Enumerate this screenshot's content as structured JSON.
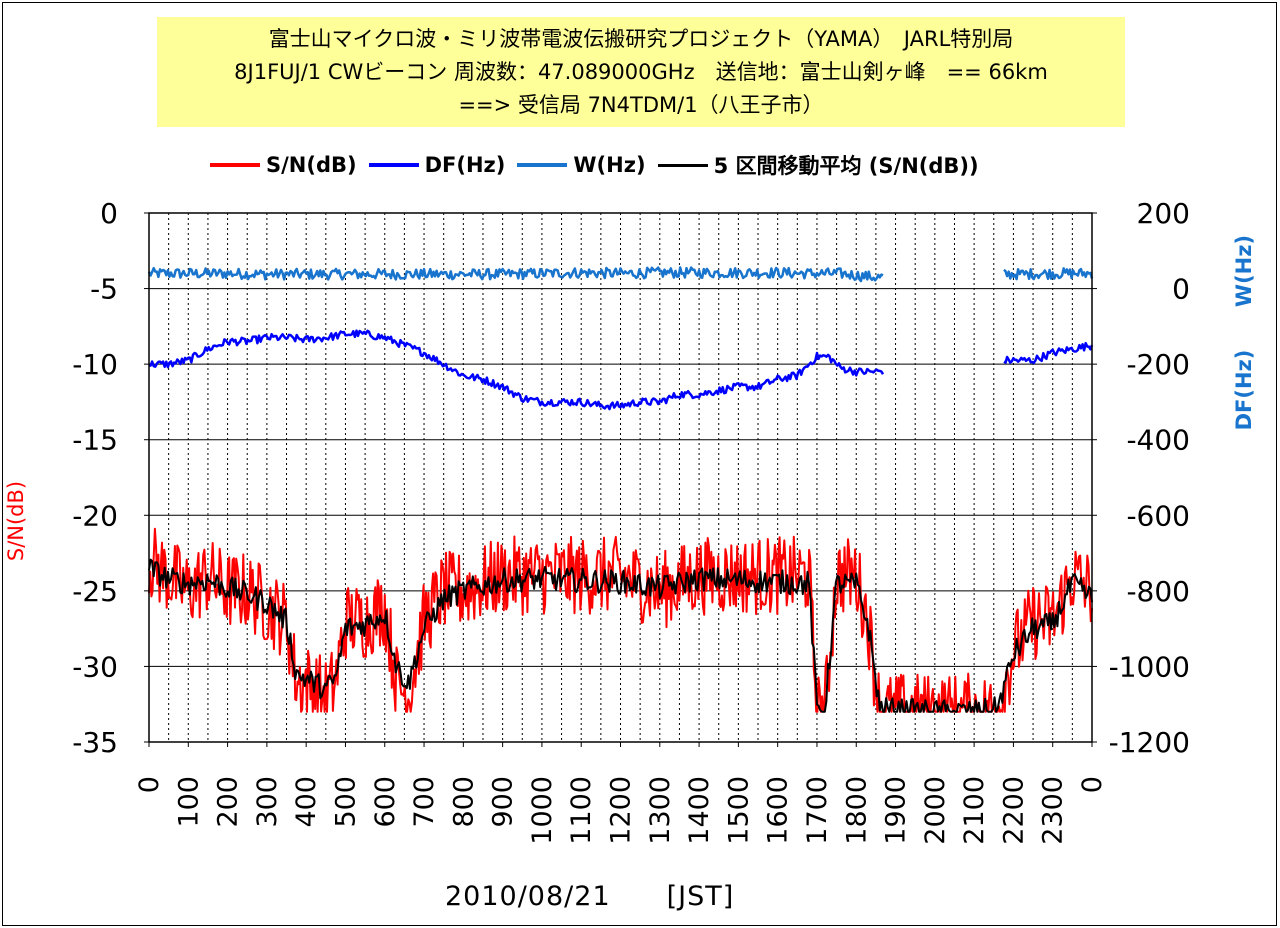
{
  "chart_data": {
    "type": "line",
    "title_lines": [
      "富士山マイクロ波・ミリ波帯電波伝搬研究プロジェクト（YAMA）　JARL特別局",
      "8J1FUJ/1 CWビーコン 周波数：47.089000GHz　送信地：富士山剣ヶ峰　== 66km",
      "==> 受信局 7N4TDM/1（八王子市）"
    ],
    "xlabel": "2010/08/21　　[JST]",
    "ylabel_left": "S/N(dB)",
    "ylabel_right_w": "W(Hz)",
    "ylabel_right_df": "DF(Hz)",
    "x_tick_labels": [
      "0",
      "100",
      "200",
      "300",
      "400",
      "500",
      "600",
      "700",
      "800",
      "900",
      "1000",
      "1100",
      "1200",
      "1300",
      "1400",
      "1500",
      "1600",
      "1700",
      "1800",
      "1900",
      "2000",
      "2100",
      "2200",
      "2300",
      "0"
    ],
    "x_range_hours": [
      0,
      24
    ],
    "y_left_ticks": [
      "0",
      "-5",
      "-10",
      "-15",
      "-20",
      "-25",
      "-30",
      "-35"
    ],
    "y_left_range": [
      -35,
      0
    ],
    "y_right_ticks": [
      "200",
      "0",
      "-200",
      "-400",
      "-600",
      "-800",
      "-1000",
      "-1200"
    ],
    "y_right_range": [
      -1200,
      200
    ],
    "grid": true,
    "legend_position": "top",
    "series": [
      {
        "name": "S/N(dB)",
        "axis": "left",
        "color": "#ff0000",
        "x_hours": [
          0,
          0.5,
          1,
          1.5,
          2,
          2.5,
          3,
          3.5,
          3.75,
          4,
          4.5,
          4.75,
          5,
          5.5,
          6,
          6.3,
          6.6,
          7,
          7.5,
          8,
          9,
          10,
          11,
          12,
          13,
          14,
          15,
          16,
          16.8,
          17,
          17.2,
          17.5,
          18,
          18.3,
          18.6,
          19,
          20,
          21,
          21.6,
          22,
          22.5,
          23,
          23.5,
          24
        ],
        "values": [
          -23,
          -24,
          -25,
          -24,
          -25,
          -25,
          -26,
          -27,
          -31,
          -31,
          -32,
          -31,
          -27,
          -27,
          -26,
          -31,
          -32,
          -27,
          -25,
          -25,
          -24,
          -24,
          -24,
          -24,
          -25,
          -24,
          -24,
          -24,
          -24,
          -33,
          -33,
          -24,
          -24,
          -27,
          -33,
          -33,
          -33,
          -33,
          -33,
          -29,
          -27,
          -27,
          -24,
          -25
        ]
      },
      {
        "name": "5 区間移動平均 (S/N(dB))",
        "axis": "left",
        "color": "#000000",
        "x_hours": [
          0,
          0.5,
          1,
          1.5,
          2,
          2.5,
          3,
          3.5,
          3.75,
          4,
          4.5,
          4.75,
          5,
          5.5,
          6,
          6.3,
          6.6,
          7,
          7.5,
          8,
          9,
          10,
          11,
          12,
          13,
          14,
          15,
          16,
          16.8,
          17,
          17.2,
          17.5,
          18,
          18.3,
          18.6,
          19,
          20,
          21,
          21.6,
          22,
          22.5,
          23,
          23.5,
          24
        ],
        "values": [
          -23.5,
          -24.2,
          -24.5,
          -24.3,
          -24.8,
          -25.2,
          -25.8,
          -27,
          -30.5,
          -30.8,
          -31.5,
          -30.8,
          -27.5,
          -27.2,
          -26.5,
          -30,
          -31.2,
          -27.5,
          -25.5,
          -25,
          -24.3,
          -24.2,
          -24.3,
          -24.4,
          -24.8,
          -24.2,
          -24.3,
          -24.4,
          -24.5,
          -32.8,
          -32.8,
          -24.5,
          -24.6,
          -27.2,
          -32.8,
          -32.9,
          -33,
          -33,
          -32.8,
          -29.2,
          -27.5,
          -27.2,
          -24.5,
          -25.5
        ]
      },
      {
        "name": "DF(Hz)",
        "axis": "right",
        "color": "#0000ff",
        "x_hours": [
          0,
          0.5,
          1,
          1.5,
          2,
          2.5,
          3,
          3.5,
          4,
          4.5,
          5,
          5.5,
          6,
          6.5,
          7,
          7.5,
          8,
          8.5,
          9,
          9.5,
          10,
          10.5,
          11,
          11.5,
          12,
          12.5,
          13,
          13.5,
          14,
          14.5,
          15,
          15.5,
          16,
          16.5,
          17,
          17.3,
          17.6,
          18,
          18.5,
          21.8,
          22,
          22.5,
          23,
          23.5,
          24
        ],
        "values": [
          -200,
          -200,
          -190,
          -160,
          -140,
          -140,
          -130,
          -130,
          -135,
          -130,
          -120,
          -120,
          -130,
          -150,
          -170,
          -200,
          -230,
          -240,
          -260,
          -290,
          -300,
          -300,
          -300,
          -310,
          -310,
          -300,
          -300,
          -280,
          -280,
          -270,
          -260,
          -260,
          -240,
          -230,
          -180,
          -180,
          -210,
          -220,
          -220,
          -190,
          -190,
          -190,
          -170,
          -160,
          -150
        ]
      },
      {
        "name": "W(Hz)",
        "axis": "right",
        "color": "#1874cd",
        "x_hours": [
          0,
          1,
          2,
          3,
          4,
          5,
          6,
          7,
          8,
          9,
          10,
          11,
          12,
          13,
          14,
          15,
          16,
          16.8,
          17,
          17.6,
          18,
          18.5,
          21.8,
          22,
          23,
          24
        ],
        "values": [
          40,
          40,
          40,
          38,
          38,
          38,
          38,
          38,
          38,
          38,
          40,
          42,
          40,
          42,
          42,
          42,
          42,
          40,
          40,
          40,
          35,
          30,
          38,
          38,
          40,
          40
        ]
      }
    ]
  }
}
